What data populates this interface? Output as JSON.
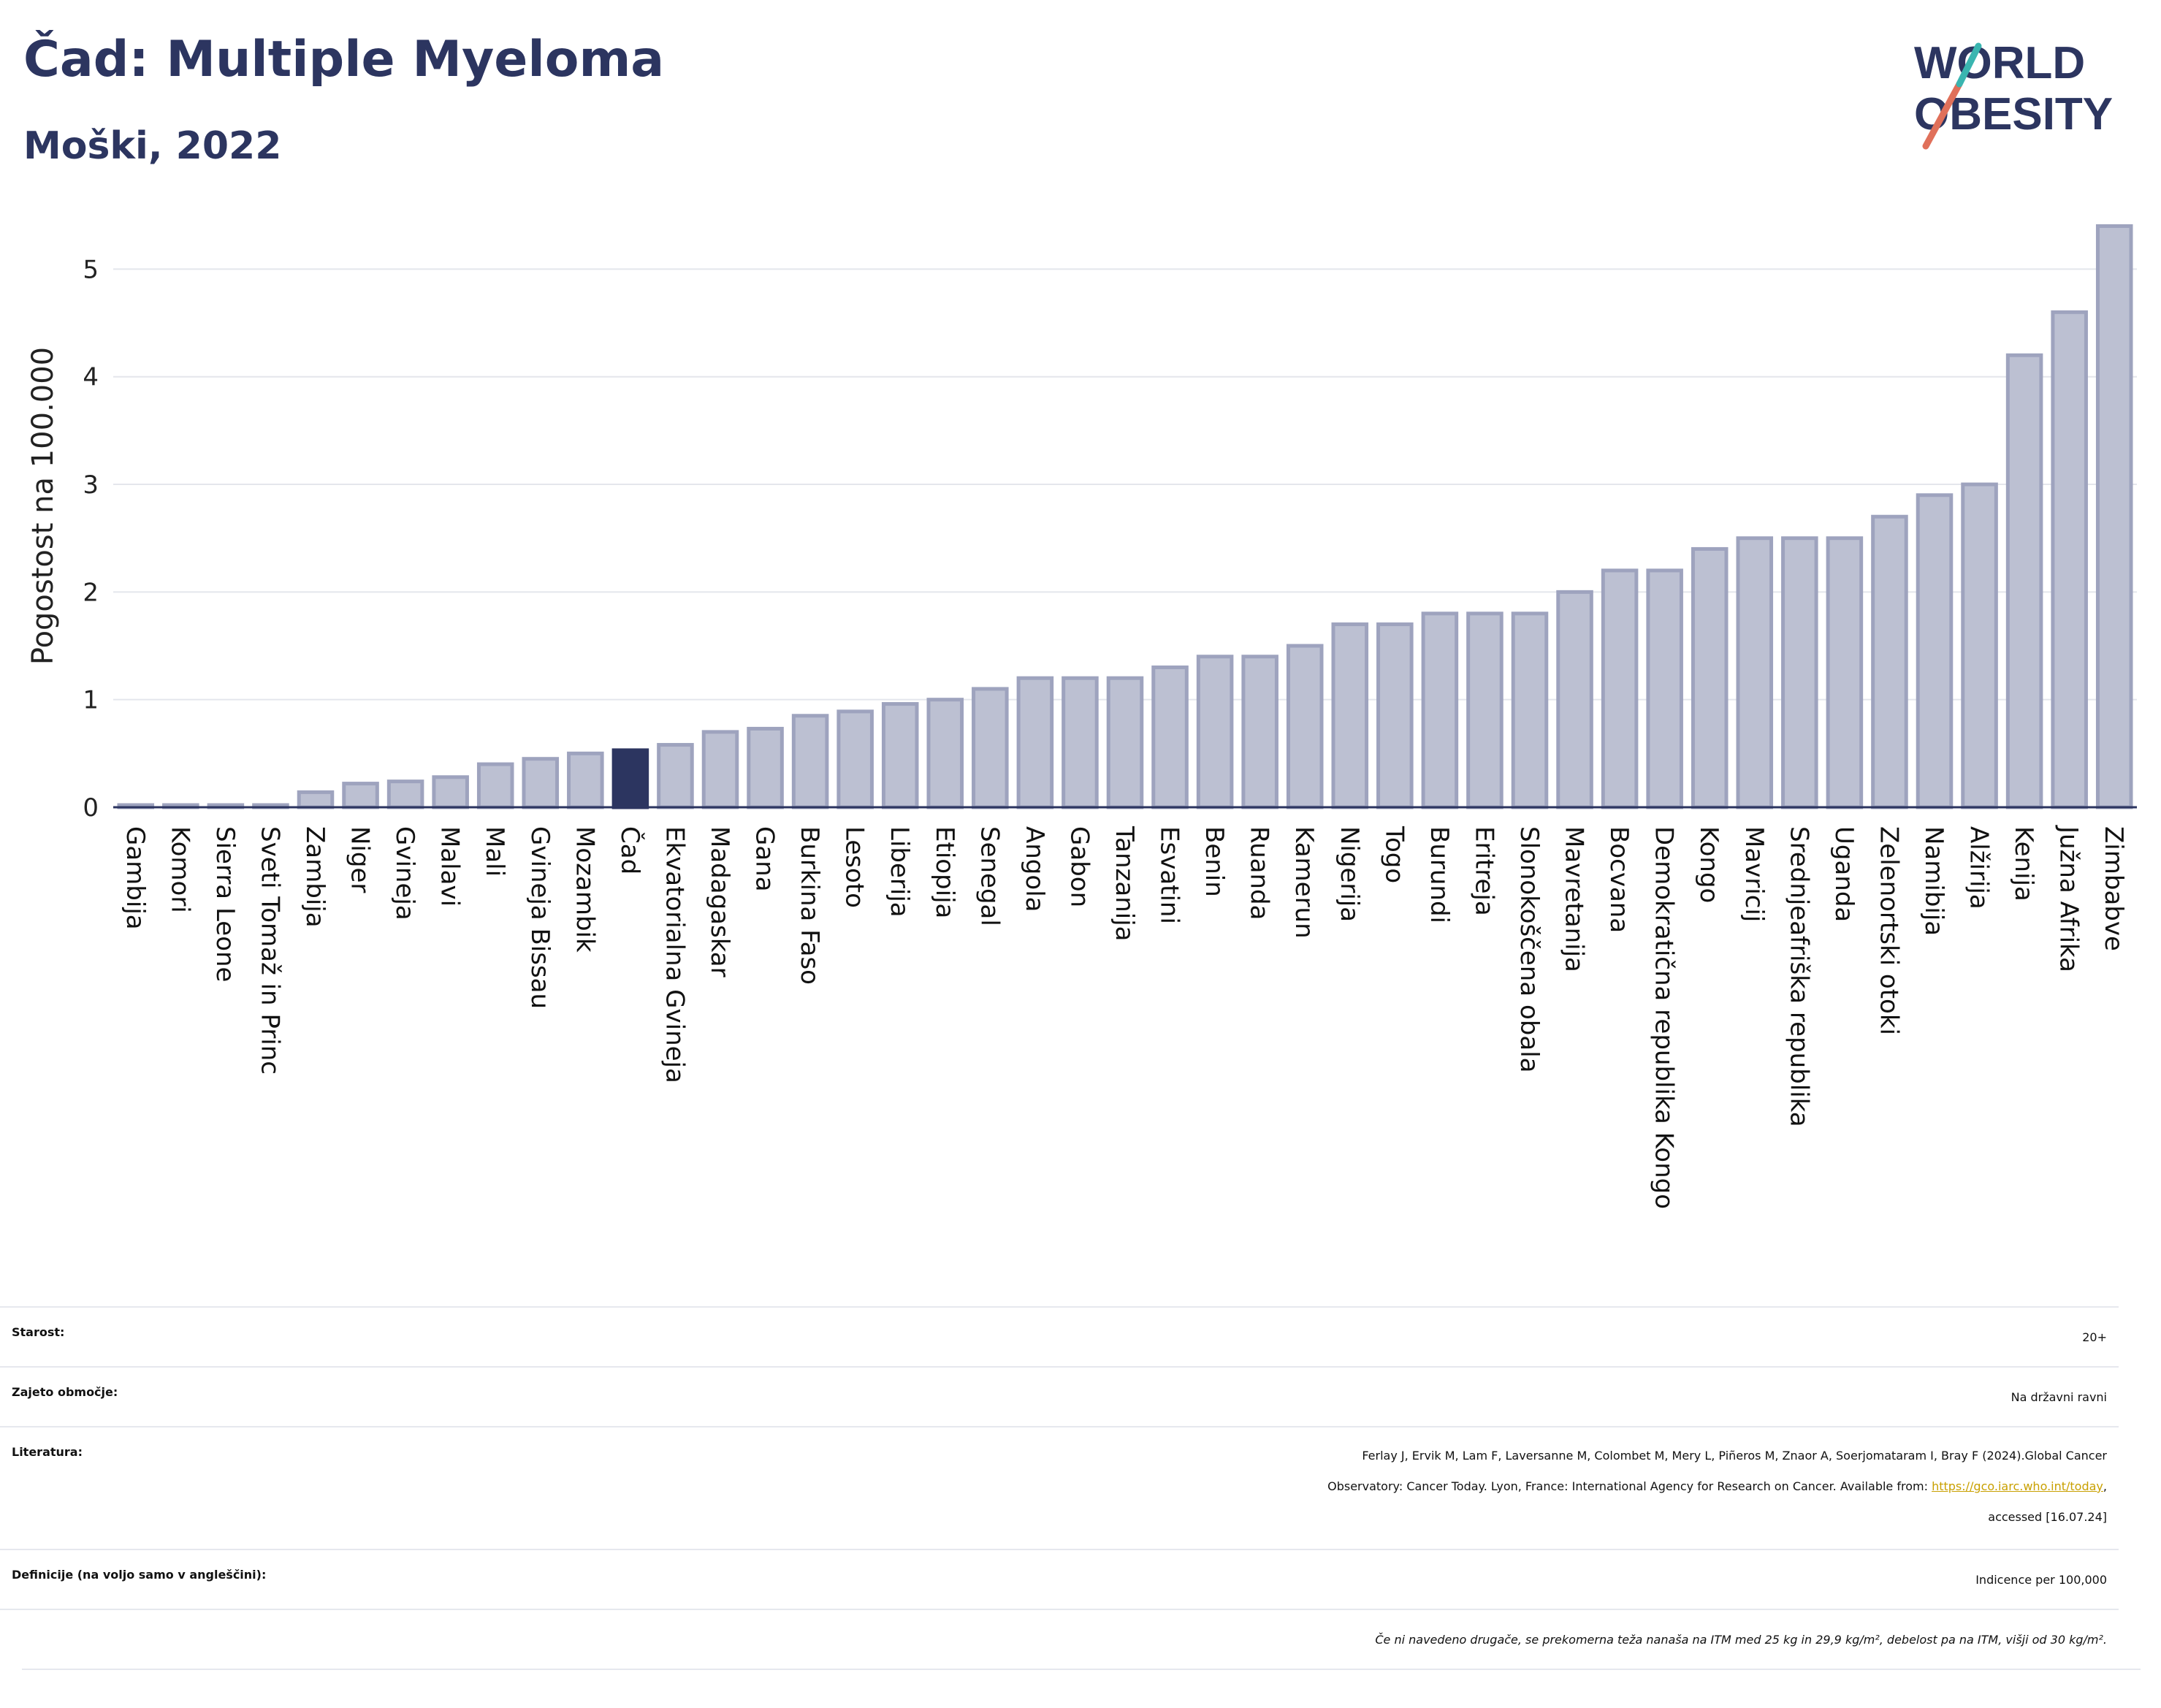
{
  "header": {
    "title": "Čad: Multiple Myeloma",
    "subtitle": "Moški, 2022"
  },
  "logo": {
    "line1": "WORLD",
    "line2": "OBESITY",
    "accent_color": "#e0705a",
    "accent_color2": "#3ab5b0",
    "text_color": "#2c3560"
  },
  "colors": {
    "bar": "#bcc0d2",
    "bar_border": "#9ea3be",
    "highlight": "#2c3560",
    "grid": "#e4e6ec",
    "axis": "#2c3560"
  },
  "chart_data": {
    "type": "bar",
    "ylabel": "Pogostost na 100.000",
    "ylim": [
      0,
      5.6
    ],
    "yticks": [
      0,
      1,
      2,
      3,
      4,
      5
    ],
    "grid": true,
    "highlight": "Čad",
    "categories": [
      "Gambija",
      "Komori",
      "Sierra Leone",
      "Sveti Tomaž in Princ",
      "Zambija",
      "Niger",
      "Gvineja",
      "Malavi",
      "Mali",
      "Gvineja Bissau",
      "Mozambik",
      "Čad",
      "Ekvatorialna Gvineja",
      "Madagaskar",
      "Gana",
      "Burkina Faso",
      "Lesoto",
      "Liberija",
      "Etiopija",
      "Senegal",
      "Angola",
      "Gabon",
      "Tanzanija",
      "Esvatini",
      "Benin",
      "Ruanda",
      "Kamerun",
      "Nigerija",
      "Togo",
      "Burundi",
      "Eritreja",
      "Slonokoščena obala",
      "Mavretanija",
      "Bocvana",
      "Demokratična republika Kongo",
      "Kongo",
      "Mavricij",
      "Srednjeafriška republika",
      "Uganda",
      "Zelenortski otoki",
      "Namibija",
      "Alžirija",
      "Kenija",
      "Južna Afrika",
      "Zimbabve"
    ],
    "values": [
      0.02,
      0.02,
      0.02,
      0.02,
      0.14,
      0.22,
      0.24,
      0.28,
      0.4,
      0.45,
      0.5,
      0.53,
      0.58,
      0.7,
      0.73,
      0.85,
      0.89,
      0.96,
      1.0,
      1.1,
      1.2,
      1.2,
      1.2,
      1.3,
      1.4,
      1.4,
      1.5,
      1.7,
      1.7,
      1.8,
      1.8,
      1.8,
      2.0,
      2.2,
      2.2,
      2.4,
      2.5,
      2.5,
      2.5,
      2.7,
      2.9,
      3.0,
      4.2,
      4.6,
      5.4
    ]
  },
  "info": {
    "age_label": "Starost:",
    "age_value": "20+",
    "area_label": "Zajeto območje:",
    "area_value": "Na državni ravni",
    "ref_label": "Literatura:",
    "ref_line1": "Ferlay J, Ervik M, Lam F, Laversanne M, Colombet M, Mery L, Piñeros M, Znaor A, Soerjomataram I, Bray F (2024).Global Cancer",
    "ref_line2": "Observatory: Cancer Today. Lyon, France: International Agency for Research on Cancer. Available from:",
    "ref_link": "https://gco.iarc.who.int/today",
    "ref_line2_end": ",",
    "ref_line3": "accessed [16.07.24]",
    "def_label": "Definicije (na voljo samo v angleščini):",
    "def_value": "Indicence per 100,000",
    "note": "Če ni navedeno drugače, se prekomerna teža nanaša na ITM med 25 kg in 29,9 kg/m², debelost pa na ITM, višji od 30 kg/m²."
  }
}
